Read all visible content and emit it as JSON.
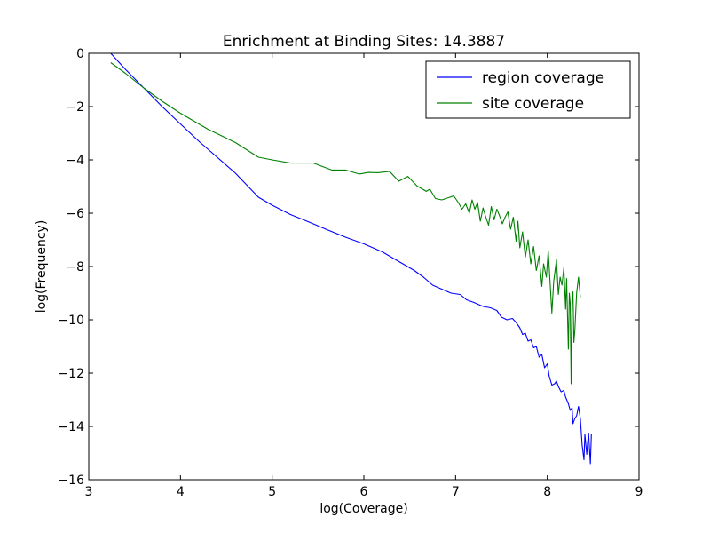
{
  "chart_data": {
    "type": "line",
    "title": "Enrichment at Binding Sites: 14.3887",
    "xlabel": "log(Coverage)",
    "ylabel": "log(Frequency)",
    "xlim": [
      3,
      9
    ],
    "ylim": [
      -16,
      0
    ],
    "xticks": [
      3,
      4,
      5,
      6,
      7,
      8,
      9
    ],
    "yticks": [
      0,
      -2,
      -4,
      -6,
      -8,
      -10,
      -12,
      -14,
      -16
    ],
    "xtick_labels": [
      "3",
      "4",
      "5",
      "6",
      "7",
      "8",
      "9"
    ],
    "ytick_labels": [
      "0",
      "−2",
      "−4",
      "−6",
      "−8",
      "−10",
      "−12",
      "−14",
      "−16"
    ],
    "grid": false,
    "legend_position": "top-right",
    "series": [
      {
        "name": "region coverage",
        "color": "#0000ff",
        "points": [
          [
            3.24,
            0.0
          ],
          [
            3.4,
            -0.6
          ],
          [
            3.6,
            -1.3
          ],
          [
            3.8,
            -2.0
          ],
          [
            4.0,
            -2.65
          ],
          [
            4.2,
            -3.3
          ],
          [
            4.4,
            -3.9
          ],
          [
            4.6,
            -4.5
          ],
          [
            4.85,
            -5.4
          ],
          [
            5.0,
            -5.7
          ],
          [
            5.2,
            -6.05
          ],
          [
            5.4,
            -6.33
          ],
          [
            5.6,
            -6.62
          ],
          [
            5.8,
            -6.9
          ],
          [
            6.0,
            -7.15
          ],
          [
            6.2,
            -7.45
          ],
          [
            6.3,
            -7.65
          ],
          [
            6.45,
            -7.95
          ],
          [
            6.55,
            -8.15
          ],
          [
            6.65,
            -8.4
          ],
          [
            6.75,
            -8.7
          ],
          [
            6.85,
            -8.85
          ],
          [
            6.95,
            -9.0
          ],
          [
            7.05,
            -9.05
          ],
          [
            7.12,
            -9.25
          ],
          [
            7.2,
            -9.35
          ],
          [
            7.3,
            -9.5
          ],
          [
            7.38,
            -9.55
          ],
          [
            7.45,
            -9.65
          ],
          [
            7.5,
            -9.9
          ],
          [
            7.56,
            -10.0
          ],
          [
            7.62,
            -9.95
          ],
          [
            7.66,
            -10.1
          ],
          [
            7.7,
            -10.3
          ],
          [
            7.73,
            -10.55
          ],
          [
            7.76,
            -10.5
          ],
          [
            7.79,
            -10.8
          ],
          [
            7.82,
            -10.75
          ],
          [
            7.85,
            -11.05
          ],
          [
            7.88,
            -11.0
          ],
          [
            7.91,
            -11.4
          ],
          [
            7.94,
            -11.3
          ],
          [
            7.97,
            -11.8
          ],
          [
            8.0,
            -11.65
          ],
          [
            8.02,
            -12.1
          ],
          [
            8.05,
            -12.45
          ],
          [
            8.08,
            -12.4
          ],
          [
            8.1,
            -12.3
          ],
          [
            8.12,
            -12.5
          ],
          [
            8.15,
            -12.7
          ],
          [
            8.18,
            -12.65
          ],
          [
            8.2,
            -12.9
          ],
          [
            8.23,
            -13.15
          ],
          [
            8.25,
            -13.4
          ],
          [
            8.27,
            -13.3
          ],
          [
            8.28,
            -13.9
          ],
          [
            8.3,
            -13.7
          ],
          [
            8.32,
            -13.6
          ],
          [
            8.34,
            -13.25
          ],
          [
            8.36,
            -13.7
          ],
          [
            8.38,
            -14.7
          ],
          [
            8.4,
            -15.25
          ],
          [
            8.41,
            -14.3
          ],
          [
            8.43,
            -15.05
          ],
          [
            8.44,
            -14.6
          ],
          [
            8.45,
            -14.25
          ],
          [
            8.46,
            -14.85
          ],
          [
            8.47,
            -15.4
          ],
          [
            8.48,
            -14.3
          ]
        ]
      },
      {
        "name": "site coverage",
        "color": "#008000",
        "points": [
          [
            3.24,
            -0.35
          ],
          [
            3.4,
            -0.75
          ],
          [
            3.6,
            -1.3
          ],
          [
            3.8,
            -1.8
          ],
          [
            4.0,
            -2.25
          ],
          [
            4.3,
            -2.85
          ],
          [
            4.6,
            -3.35
          ],
          [
            4.85,
            -3.9
          ],
          [
            5.0,
            -4.0
          ],
          [
            5.2,
            -4.12
          ],
          [
            5.45,
            -4.12
          ],
          [
            5.55,
            -4.25
          ],
          [
            5.65,
            -4.38
          ],
          [
            5.8,
            -4.38
          ],
          [
            5.95,
            -4.53
          ],
          [
            6.05,
            -4.47
          ],
          [
            6.15,
            -4.48
          ],
          [
            6.28,
            -4.43
          ],
          [
            6.38,
            -4.8
          ],
          [
            6.48,
            -4.62
          ],
          [
            6.58,
            -4.98
          ],
          [
            6.68,
            -5.18
          ],
          [
            6.72,
            -5.1
          ],
          [
            6.78,
            -5.45
          ],
          [
            6.85,
            -5.5
          ],
          [
            6.92,
            -5.42
          ],
          [
            6.98,
            -5.35
          ],
          [
            7.03,
            -5.6
          ],
          [
            7.07,
            -5.85
          ],
          [
            7.11,
            -5.65
          ],
          [
            7.15,
            -6.0
          ],
          [
            7.18,
            -5.5
          ],
          [
            7.21,
            -5.85
          ],
          [
            7.24,
            -5.6
          ],
          [
            7.27,
            -6.3
          ],
          [
            7.3,
            -5.8
          ],
          [
            7.33,
            -6.15
          ],
          [
            7.36,
            -6.45
          ],
          [
            7.39,
            -5.75
          ],
          [
            7.42,
            -6.25
          ],
          [
            7.45,
            -5.85
          ],
          [
            7.48,
            -6.1
          ],
          [
            7.51,
            -6.4
          ],
          [
            7.54,
            -6.15
          ],
          [
            7.57,
            -5.95
          ],
          [
            7.6,
            -6.6
          ],
          [
            7.63,
            -6.15
          ],
          [
            7.66,
            -7.05
          ],
          [
            7.68,
            -6.3
          ],
          [
            7.7,
            -7.3
          ],
          [
            7.73,
            -6.7
          ],
          [
            7.76,
            -7.65
          ],
          [
            7.79,
            -7.0
          ],
          [
            7.82,
            -7.9
          ],
          [
            7.85,
            -7.25
          ],
          [
            7.88,
            -8.15
          ],
          [
            7.91,
            -7.6
          ],
          [
            7.94,
            -8.75
          ],
          [
            7.96,
            -7.9
          ],
          [
            7.99,
            -8.4
          ],
          [
            8.01,
            -7.4
          ],
          [
            8.03,
            -8.6
          ],
          [
            8.05,
            -9.75
          ],
          [
            8.07,
            -8.55
          ],
          [
            8.1,
            -7.75
          ],
          [
            8.12,
            -9.05
          ],
          [
            8.14,
            -8.4
          ],
          [
            8.16,
            -8.7
          ],
          [
            8.18,
            -8.05
          ],
          [
            8.2,
            -9.6
          ],
          [
            8.21,
            -8.45
          ],
          [
            8.23,
            -11.1
          ],
          [
            8.24,
            -9.0
          ],
          [
            8.25,
            -9.4
          ],
          [
            8.26,
            -12.4
          ],
          [
            8.27,
            -9.35
          ],
          [
            8.28,
            -8.95
          ],
          [
            8.29,
            -10.85
          ],
          [
            8.3,
            -10.4
          ],
          [
            8.32,
            -9.0
          ],
          [
            8.34,
            -8.4
          ],
          [
            8.36,
            -9.15
          ]
        ]
      }
    ]
  }
}
